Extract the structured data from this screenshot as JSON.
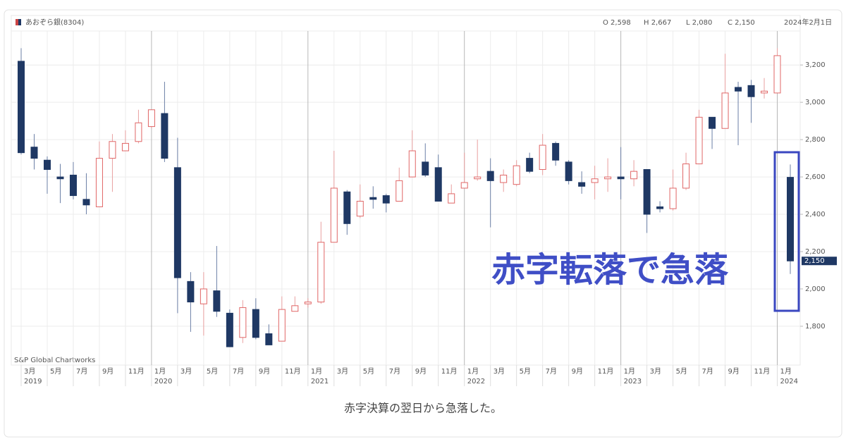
{
  "chart_data": {
    "type": "candlestick",
    "header": {
      "title": "あおぞら銀(8304)",
      "ohlc": [
        "O 2,598",
        "H 2,667",
        "L 2,080",
        "C 2,150"
      ],
      "date": "2024年2月1日"
    },
    "source": "S&P Global Chartworks",
    "annotation": "赤字転落で急落",
    "last_price_label": "2,150",
    "caption": "赤字決算の翌日から急落した。",
    "categories": [
      "3月",
      null,
      "5月",
      null,
      "7月",
      null,
      "9月",
      null,
      "11月",
      null,
      "1月",
      null,
      "3月",
      null,
      "5月",
      null,
      "7月",
      null,
      "9月",
      null,
      "11月",
      null,
      "1月",
      null,
      "3月",
      null,
      "5月",
      null,
      "7月",
      null,
      "9月",
      null,
      "11月",
      null,
      "1月",
      null,
      "3月",
      null,
      "5月",
      null,
      "7月",
      null,
      "9月",
      null,
      "11月",
      null,
      "1月",
      null,
      "3月",
      null,
      "5月",
      null,
      "7月",
      null,
      "9月",
      null,
      "11月",
      null,
      "1月",
      null
    ],
    "category_years": [
      "2019",
      null,
      null,
      null,
      null,
      null,
      null,
      null,
      null,
      null,
      "2020",
      null,
      null,
      null,
      null,
      null,
      null,
      null,
      null,
      null,
      null,
      null,
      "2021",
      null,
      null,
      null,
      null,
      null,
      null,
      null,
      null,
      null,
      null,
      null,
      "2022",
      null,
      null,
      null,
      null,
      null,
      null,
      null,
      null,
      null,
      null,
      null,
      "2023",
      null,
      null,
      null,
      null,
      null,
      null,
      null,
      null,
      null,
      null,
      null,
      "2024",
      null
    ],
    "open": [
      3220,
      2760,
      2690,
      2600,
      2610,
      2480,
      2440,
      2700,
      2740,
      2790,
      2870,
      2940,
      2650,
      2040,
      1920,
      1990,
      1870,
      1740,
      1890,
      1760,
      1720,
      1880,
      1920,
      1930,
      2250,
      2520,
      2390,
      2490,
      2500,
      2470,
      2600,
      2680,
      2650,
      2460,
      2540,
      2590,
      2630,
      2570,
      2560,
      2700,
      2640,
      2780,
      2680,
      2570,
      2570,
      2590,
      2600,
      2590,
      2640,
      2440,
      2430,
      2540,
      2670,
      2920,
      2860,
      3080,
      3090,
      3050,
      3050,
      2598
    ],
    "high": [
      3290,
      2830,
      2710,
      2670,
      2680,
      2620,
      2790,
      2830,
      2850,
      2960,
      2960,
      3110,
      2810,
      2090,
      2090,
      2230,
      1890,
      1940,
      1950,
      1810,
      1960,
      1960,
      1950,
      2360,
      2740,
      2530,
      2560,
      2550,
      2510,
      2650,
      2850,
      2780,
      2720,
      2560,
      2730,
      2800,
      2700,
      2640,
      2690,
      2730,
      2830,
      2790,
      2690,
      2630,
      2660,
      2700,
      2760,
      2690,
      2640,
      2470,
      2640,
      2730,
      2960,
      2920,
      3260,
      3110,
      3120,
      3130,
      3290,
      2667
    ],
    "low": [
      2720,
      2640,
      2510,
      2460,
      2480,
      2400,
      2440,
      2520,
      2740,
      2780,
      2860,
      2680,
      1870,
      1770,
      1750,
      1850,
      1690,
      1710,
      1730,
      1700,
      1720,
      1880,
      1900,
      1920,
      2250,
      2290,
      2380,
      2430,
      2410,
      2470,
      2600,
      2600,
      2470,
      2460,
      2540,
      2580,
      2330,
      2520,
      2550,
      2620,
      2610,
      2660,
      2560,
      2510,
      2480,
      2520,
      2480,
      2550,
      2300,
      2410,
      2420,
      2530,
      2670,
      2750,
      2860,
      2770,
      2890,
      3020,
      3050,
      2080
    ],
    "close": [
      2730,
      2700,
      2640,
      2590,
      2500,
      2450,
      2700,
      2790,
      2780,
      2890,
      2960,
      2700,
      2060,
      1930,
      2000,
      1880,
      1690,
      1900,
      1740,
      1700,
      1890,
      1910,
      1930,
      2250,
      2540,
      2350,
      2470,
      2480,
      2460,
      2580,
      2740,
      2610,
      2470,
      2510,
      2570,
      2600,
      2580,
      2610,
      2660,
      2630,
      2770,
      2690,
      2580,
      2550,
      2590,
      2600,
      2590,
      2630,
      2400,
      2430,
      2540,
      2670,
      2920,
      2860,
      3050,
      3060,
      3030,
      3060,
      3250,
      2150
    ],
    "up_color": "#e06666",
    "down_color": "#1f3864",
    "ylim": [
      1592,
      3382
    ],
    "yticks": [
      {
        "value": 1800,
        "label": "1,800"
      },
      {
        "value": 2000,
        "label": "2,000"
      },
      {
        "value": 2200,
        "label": "2,200"
      },
      {
        "value": 2400,
        "label": "2,400"
      },
      {
        "value": 2600,
        "label": "2,600"
      },
      {
        "value": 2800,
        "label": "2,800"
      },
      {
        "value": 3000,
        "label": "3,000"
      },
      {
        "value": 3200,
        "label": "3,200"
      }
    ],
    "grid": true
  }
}
